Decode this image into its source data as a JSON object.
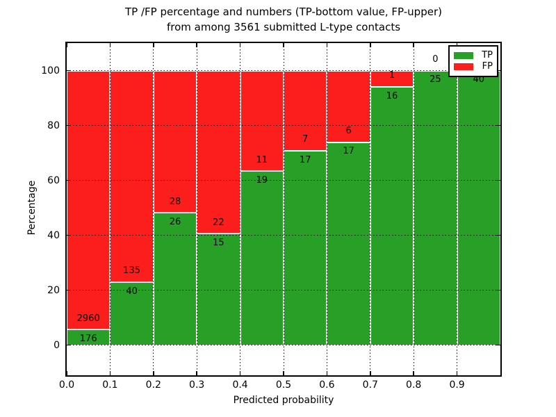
{
  "figure": {
    "title_line1": "TP /FP percentage and numbers (TP-bottom value, FP-upper)",
    "title_line2": "from among 3561 submitted L-type contacts"
  },
  "chart_data": {
    "type": "bar",
    "stacked": true,
    "normalization": "each bin stacked to 100 percent; numeric labels show raw counts (TP bottom, FP upper)",
    "title": "TP /FP percentage and numbers (TP-bottom value, FP-upper) from among 3561 submitted L-type contacts",
    "total_contacts": 3561,
    "xlabel": "Predicted probability",
    "ylabel": "Percentage",
    "bins": [
      "0.0-0.1",
      "0.1-0.2",
      "0.2-0.3",
      "0.3-0.4",
      "0.4-0.5",
      "0.5-0.6",
      "0.6-0.7",
      "0.7-0.8",
      "0.8-0.9",
      "0.9-1.0"
    ],
    "series": [
      {
        "name": "TP",
        "color": "#28A028",
        "counts": [
          176,
          40,
          26,
          15,
          19,
          17,
          17,
          16,
          25,
          40
        ]
      },
      {
        "name": "FP",
        "color": "#FC1D1D",
        "counts": [
          2960,
          135,
          28,
          22,
          11,
          7,
          6,
          1,
          0,
          0
        ]
      }
    ],
    "tp_percent_heights": [
      5.6,
      22.9,
      48.1,
      40.5,
      63.3,
      70.8,
      73.9,
      94.1,
      100.0,
      100.0
    ],
    "xticks": [
      "0.0",
      "0.1",
      "0.2",
      "0.3",
      "0.4",
      "0.5",
      "0.6",
      "0.7",
      "0.8",
      "0.9"
    ],
    "yticks": [
      "0",
      "20",
      "40",
      "60",
      "80",
      "100"
    ],
    "xlim": [
      0.0,
      1.0
    ],
    "ylim": [
      -11,
      110
    ],
    "grid": "dotted",
    "legend": {
      "position": "upper right",
      "entries": [
        {
          "label": "TP",
          "color": "#28A028"
        },
        {
          "label": "FP",
          "color": "#FC1D1D"
        }
      ]
    }
  }
}
